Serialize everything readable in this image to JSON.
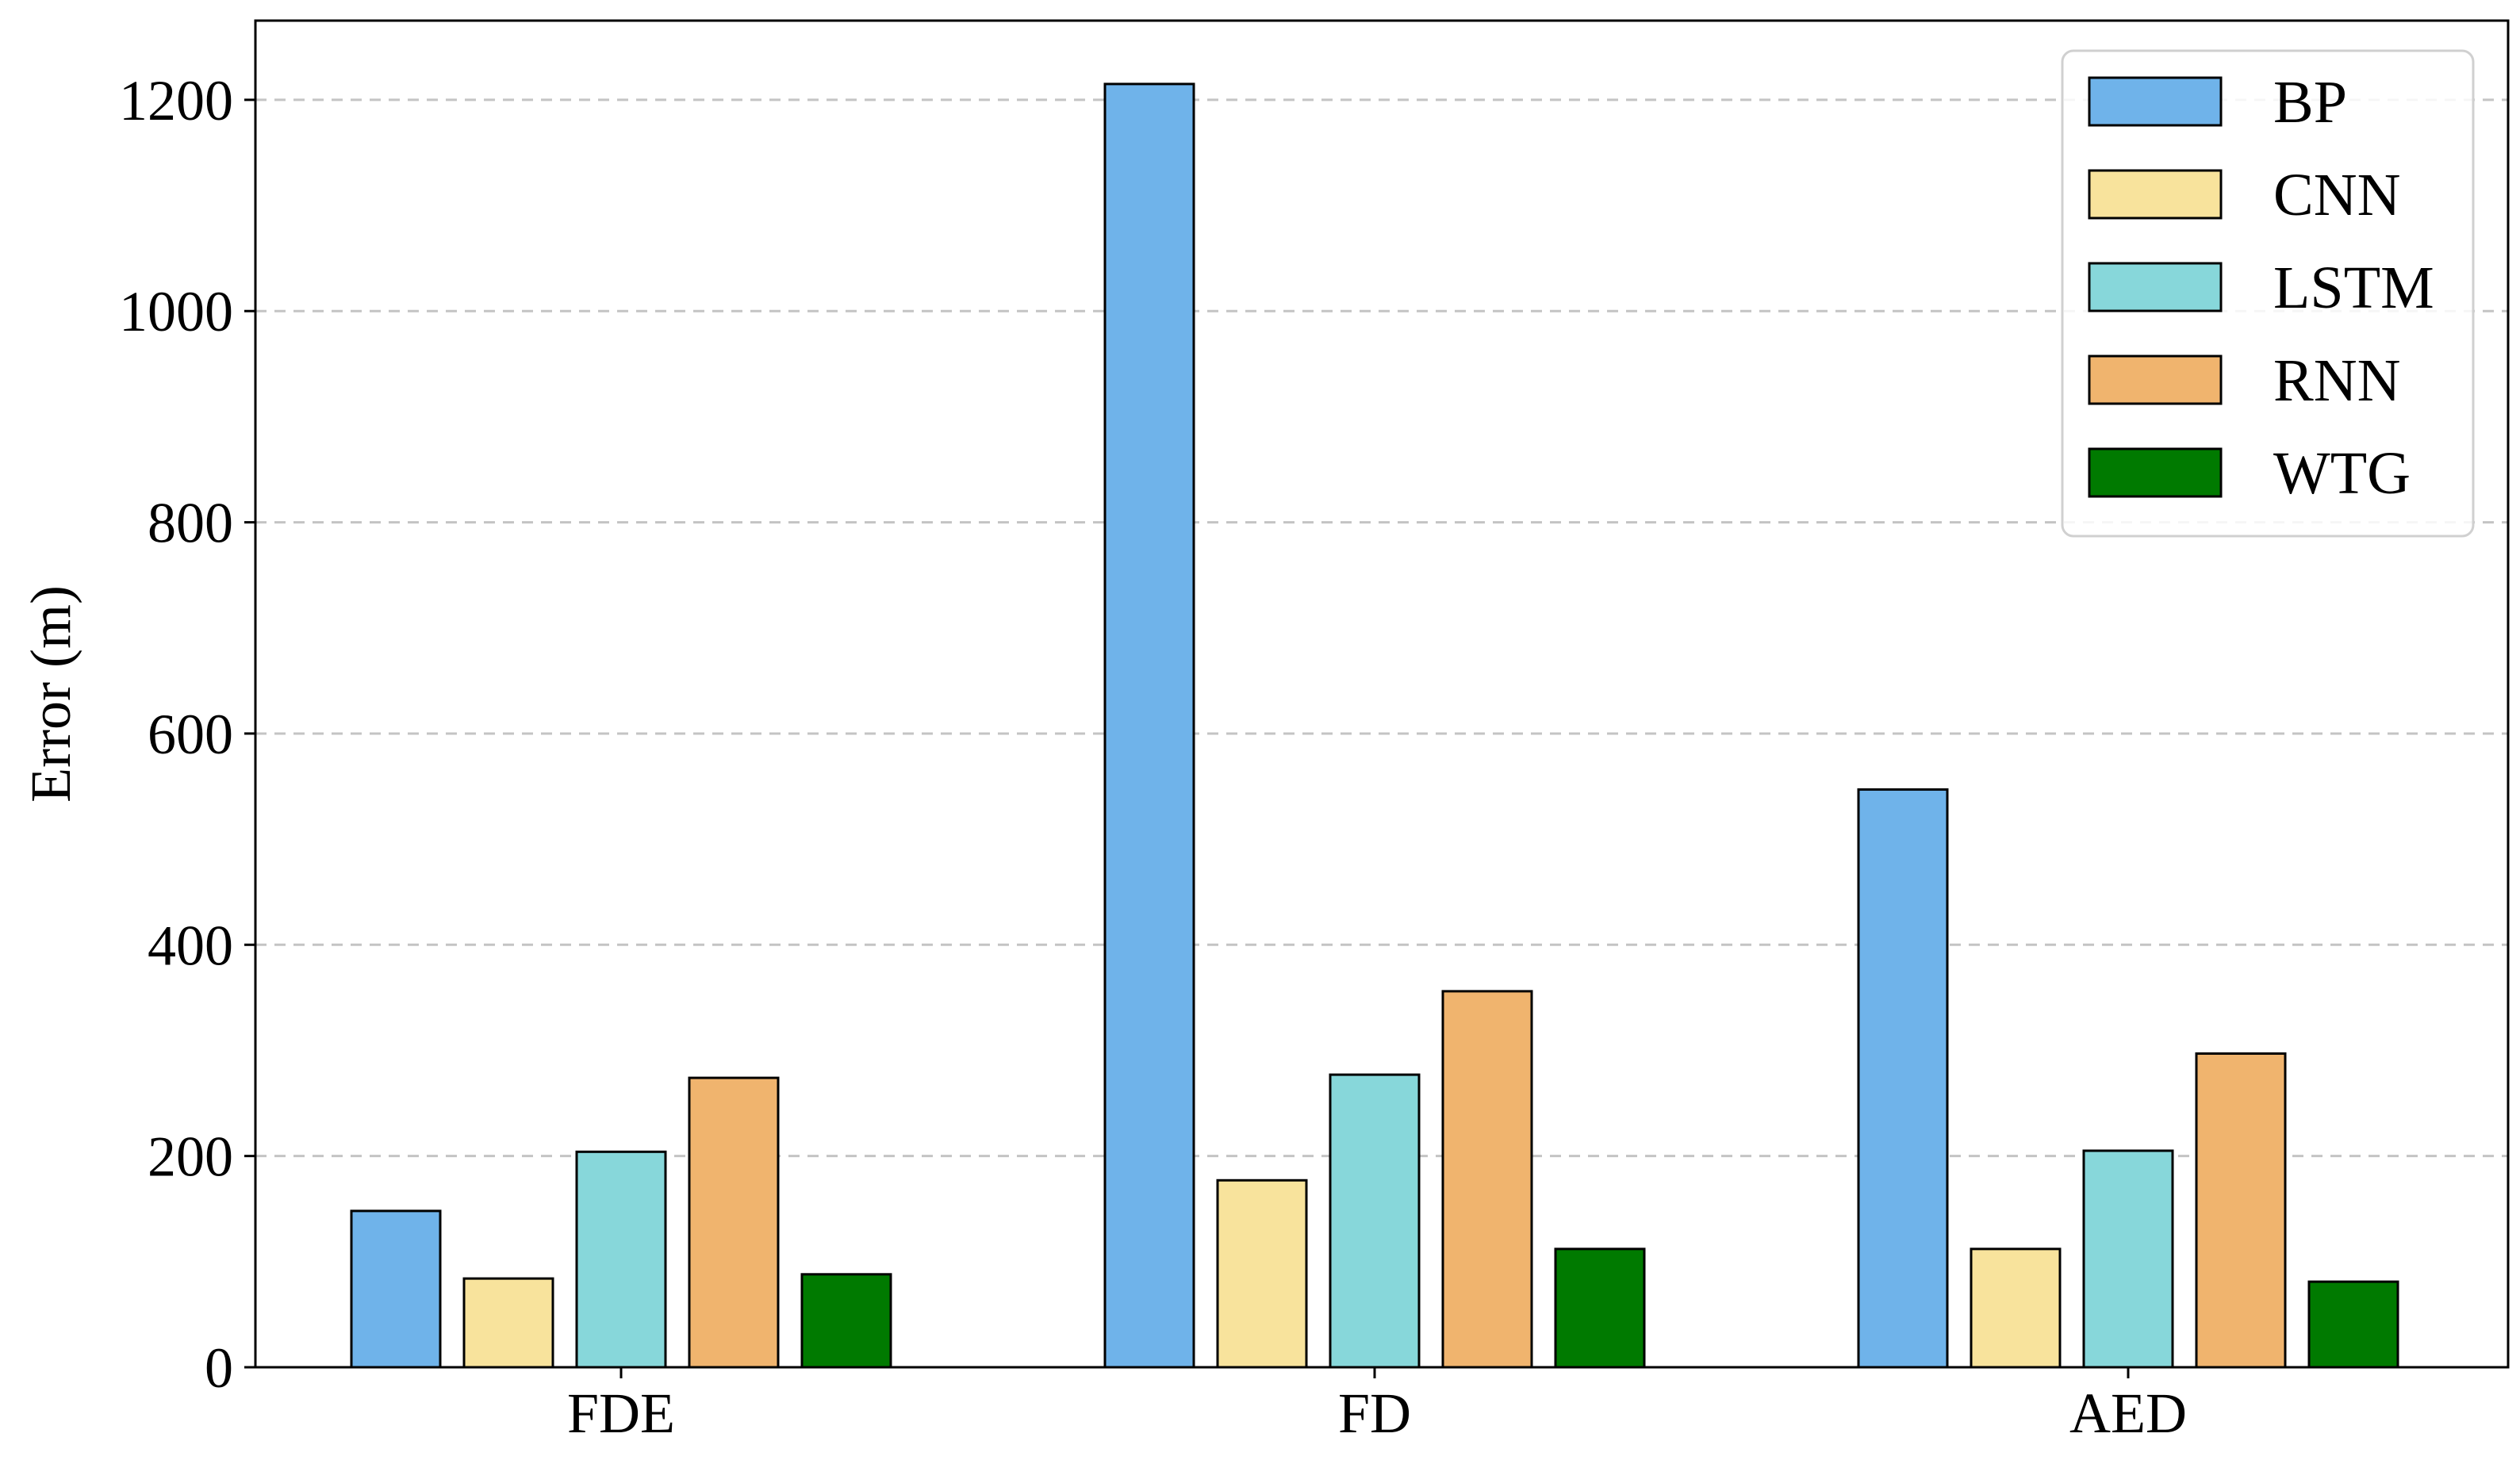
{
  "chart_data": {
    "type": "bar",
    "title": "",
    "xlabel": "",
    "ylabel": "Error (m)",
    "ylim": [
      0,
      1275
    ],
    "yticks": [
      0,
      200,
      400,
      600,
      800,
      1000,
      1200
    ],
    "grid": "horizontal-dashed",
    "legend_position": "top-right",
    "categories": [
      "FDE",
      "FD",
      "AED"
    ],
    "series": [
      {
        "name": "BP",
        "color": "#6fb3ea",
        "values": [
          148,
          1215,
          547
        ]
      },
      {
        "name": "CNN",
        "color": "#f8e39c",
        "values": [
          84,
          177,
          112
        ]
      },
      {
        "name": "LSTM",
        "color": "#87d7da",
        "values": [
          204,
          277,
          205
        ]
      },
      {
        "name": "RNN",
        "color": "#f0b46e",
        "values": [
          274,
          356,
          297
        ]
      },
      {
        "name": "WTG",
        "color": "#007a00",
        "values": [
          88,
          112,
          81
        ]
      }
    ]
  }
}
